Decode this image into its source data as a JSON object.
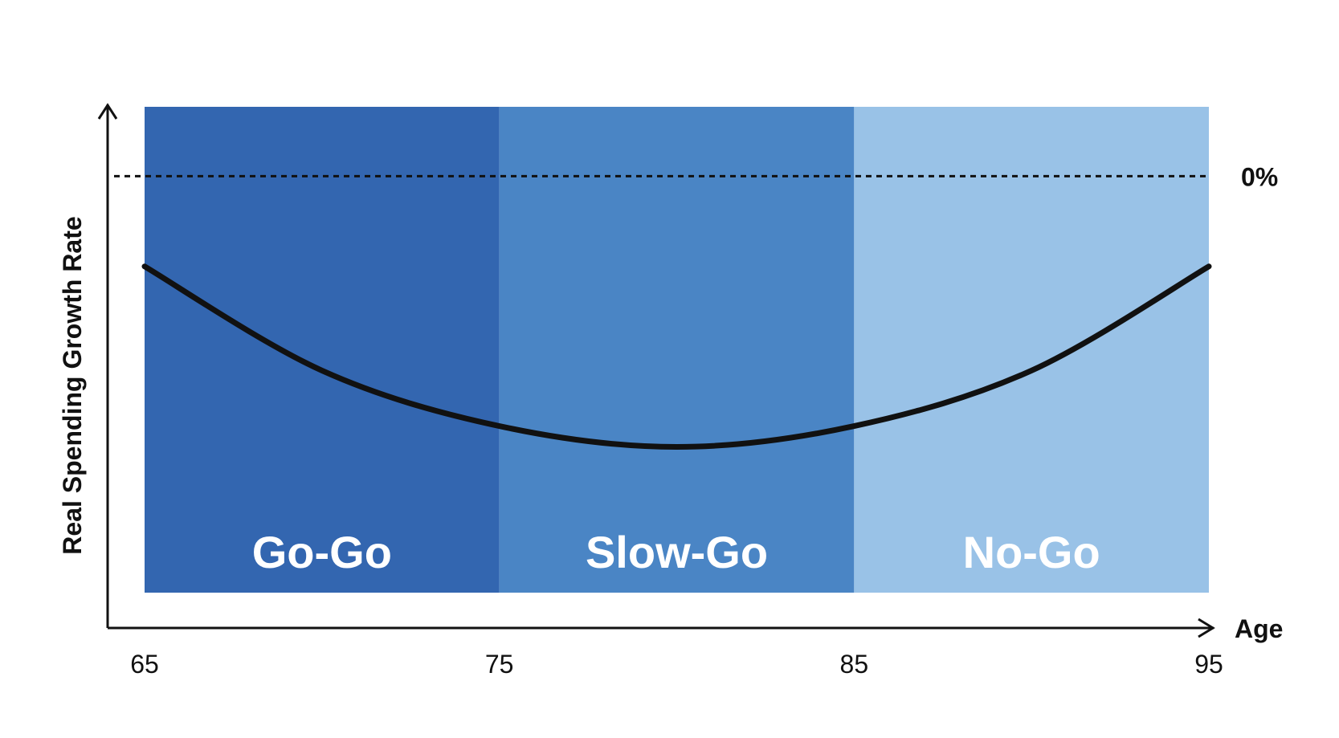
{
  "chart_data": {
    "type": "line",
    "xlabel": "Age",
    "ylabel": "Real Spending Growth Rate",
    "xlim": [
      65,
      95
    ],
    "x_ticks": [
      "65",
      "75",
      "85",
      "95"
    ],
    "ylim": [
      -6,
      1
    ],
    "y_ticks": [],
    "grid": false,
    "legend": "none",
    "bands": [
      {
        "label": "Go-Go",
        "x_start": 65,
        "x_end": 75,
        "color": "#3366b0"
      },
      {
        "label": "Slow-Go",
        "x_start": 75,
        "x_end": 85,
        "color": "#4a85c5"
      },
      {
        "label": "No-Go",
        "x_start": 85,
        "x_end": 95,
        "color": "#99c2e7"
      }
    ],
    "reference_line": {
      "label": "0%",
      "y": 0,
      "style": "dotted",
      "color": "#111111"
    },
    "series": [
      {
        "color": "#111111",
        "x": [
          65,
          70,
          75,
          80,
          85,
          90,
          95
        ],
        "y": [
          -1.3,
          -2.8,
          -3.6,
          -3.9,
          -3.6,
          -2.8,
          -1.3
        ]
      }
    ],
    "axis_color": "#111111"
  }
}
